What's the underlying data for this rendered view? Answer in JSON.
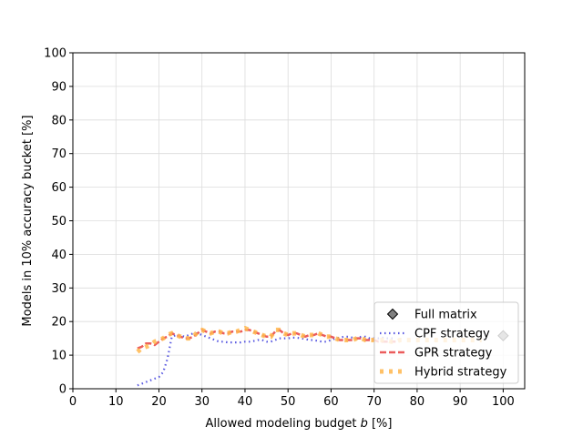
{
  "chart_data": {
    "type": "line",
    "xlabel_prefix": "Allowed modeling budget ",
    "xlabel_var": "b",
    "xlabel_suffix": " [%]",
    "ylabel": "Models in 10% accuracy bucket [%]",
    "xlim": [
      0,
      105
    ],
    "ylim": [
      0,
      100
    ],
    "xticks": [
      0,
      10,
      20,
      30,
      40,
      50,
      60,
      70,
      80,
      90,
      100
    ],
    "yticks": [
      0,
      10,
      20,
      30,
      40,
      50,
      60,
      70,
      80,
      90,
      100
    ],
    "grid": true,
    "legend_position": "lower-right",
    "series": [
      {
        "name": "Full matrix",
        "style": "marker",
        "color": "#808080",
        "x": [
          100
        ],
        "y": [
          15.8
        ]
      },
      {
        "name": "CPF strategy",
        "style": "dotted",
        "color": "#3b3bdc",
        "x": [
          15,
          16,
          17,
          18,
          19,
          20,
          21,
          22,
          23,
          24,
          25,
          26,
          27,
          28,
          29,
          30,
          31,
          32,
          33,
          34,
          35,
          36,
          37,
          38,
          39,
          40,
          41,
          42,
          43,
          44,
          45,
          46,
          47,
          48,
          49,
          50,
          51,
          52,
          53,
          54,
          55,
          56,
          57,
          58,
          59,
          60,
          61,
          62,
          63,
          64,
          65,
          66,
          67,
          68,
          69,
          70,
          71,
          72,
          73,
          74,
          75
        ],
        "y": [
          1.0,
          1.5,
          2.0,
          2.5,
          3.0,
          3.5,
          5.0,
          9.0,
          15.5,
          16.0,
          15.8,
          15.5,
          16.0,
          16.5,
          16.5,
          16.0,
          15.5,
          15.0,
          14.5,
          14.0,
          14.0,
          13.8,
          13.8,
          13.8,
          13.8,
          14.0,
          14.0,
          14.2,
          14.5,
          14.5,
          14.0,
          14.0,
          14.5,
          15.0,
          15.0,
          15.0,
          15.2,
          15.2,
          15.0,
          14.8,
          14.5,
          14.5,
          14.2,
          14.0,
          14.0,
          14.5,
          15.0,
          15.2,
          15.5,
          15.5,
          15.2,
          15.0,
          15.5,
          15.5,
          15.0,
          15.0,
          15.0,
          15.2,
          15.0,
          15.0,
          15.0
        ]
      },
      {
        "name": "GPR strategy",
        "style": "dashed",
        "color": "#e84040",
        "x": [
          15,
          16,
          17,
          18,
          19,
          20,
          21,
          22,
          23,
          24,
          25,
          26,
          27,
          28,
          29,
          30,
          31,
          32,
          33,
          34,
          35,
          36,
          37,
          38,
          39,
          40,
          41,
          42,
          43,
          44,
          45,
          46,
          47,
          48,
          49,
          50,
          51,
          52,
          53,
          54,
          55,
          56,
          57,
          58,
          59,
          60,
          61,
          62,
          63,
          64,
          65,
          66,
          67,
          68,
          69,
          70,
          71,
          72,
          73,
          74,
          75
        ],
        "y": [
          12.0,
          12.5,
          13.5,
          13.5,
          13.0,
          14.0,
          15.0,
          15.5,
          16.5,
          16.0,
          15.5,
          15.0,
          15.0,
          15.5,
          16.5,
          17.5,
          17.0,
          16.5,
          17.0,
          17.0,
          16.5,
          16.5,
          17.0,
          17.0,
          17.0,
          17.5,
          17.5,
          17.0,
          16.5,
          16.0,
          15.5,
          15.5,
          17.0,
          17.5,
          16.5,
          16.0,
          16.5,
          16.5,
          16.0,
          15.5,
          16.0,
          16.0,
          16.5,
          16.0,
          15.5,
          15.5,
          15.0,
          14.5,
          14.5,
          14.5,
          14.5,
          15.0,
          15.0,
          14.5,
          14.5,
          14.5,
          14.0,
          14.0,
          14.0,
          14.0,
          14.0
        ]
      },
      {
        "name": "Hybrid strategy",
        "style": "dotted-thick",
        "color": "#ffb74d",
        "x": [
          15,
          16,
          17,
          18,
          19,
          20,
          21,
          22,
          23,
          24,
          25,
          26,
          27,
          28,
          29,
          30,
          31,
          32,
          33,
          34,
          35,
          36,
          37,
          38,
          39,
          40,
          41,
          42,
          43,
          44,
          45,
          46,
          47,
          48,
          49,
          50,
          51,
          52,
          53,
          54,
          55,
          56,
          57,
          58,
          59,
          60,
          61,
          62,
          63,
          64,
          65,
          66,
          67,
          68,
          69,
          70,
          71,
          72,
          73,
          74,
          75,
          76,
          77,
          78,
          79,
          80,
          81,
          82,
          83,
          84,
          85,
          86,
          87,
          88,
          89,
          90,
          91,
          92,
          93,
          94,
          95
        ],
        "y": [
          11.0,
          12.0,
          12.5,
          13.0,
          14.0,
          14.5,
          15.0,
          16.0,
          16.5,
          16.0,
          15.5,
          15.0,
          15.0,
          15.5,
          17.0,
          17.5,
          17.0,
          16.5,
          17.0,
          17.0,
          16.5,
          16.5,
          17.0,
          17.0,
          17.5,
          18.0,
          17.5,
          17.0,
          16.5,
          16.0,
          15.5,
          15.5,
          17.5,
          17.5,
          16.5,
          16.0,
          16.5,
          16.5,
          16.0,
          15.5,
          16.0,
          16.0,
          16.5,
          16.0,
          15.5,
          15.5,
          15.0,
          14.5,
          14.5,
          14.5,
          14.5,
          15.0,
          15.0,
          14.5,
          14.5,
          14.5,
          14.5,
          14.5,
          14.5,
          14.0,
          14.0,
          14.5,
          14.5,
          14.5,
          14.5,
          14.5,
          14.5,
          14.5,
          14.5,
          14.5,
          14.5,
          14.5,
          14.5,
          14.5,
          14.5,
          14.5,
          14.5,
          14.5,
          14.5,
          14.5,
          14.5
        ]
      }
    ]
  }
}
